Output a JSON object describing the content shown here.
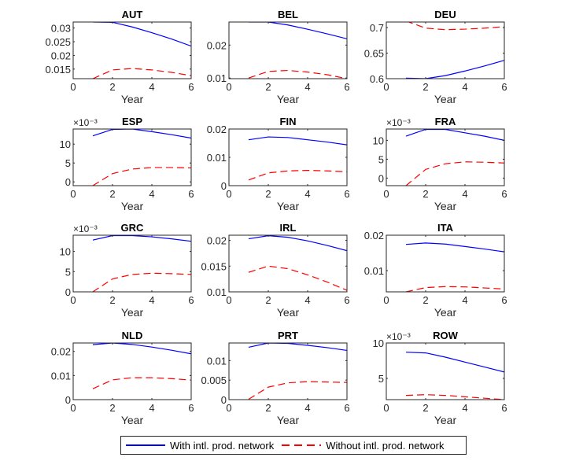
{
  "chart_data": {
    "type": "line",
    "layout": "4x3 small multiples",
    "x": [
      1,
      2,
      3,
      4,
      5,
      6
    ],
    "xlabel": "Year",
    "xlim": [
      0,
      6
    ],
    "xticks": [
      0,
      2,
      4,
      6
    ],
    "grid": false,
    "legend": {
      "placement": "bottom-center",
      "entries": [
        {
          "name": "With intl. prod. network",
          "color": "#0000ff",
          "style": "solid"
        },
        {
          "name": "Without intl. prod. network",
          "color": "#ff0000",
          "style": "dashed"
        }
      ]
    },
    "panels": [
      {
        "title": "AUT",
        "ylim": [
          0.0115,
          0.0322
        ],
        "yticks": [
          0.015,
          0.02,
          0.025,
          0.03
        ],
        "ytick_labels": [
          "0.015",
          "0.02",
          "0.025",
          "0.03"
        ],
        "exponent": "",
        "series": [
          {
            "name": "With intl. prod. network",
            "values": [
              0.0322,
              0.0321,
              0.0304,
              0.0283,
              0.026,
              0.0234
            ]
          },
          {
            "name": "Without intl. prod. network",
            "values": [
              0.0115,
              0.0147,
              0.0152,
              0.0147,
              0.0138,
              0.0126
            ]
          }
        ]
      },
      {
        "title": "BEL",
        "ylim": [
          0.0098,
          0.027
        ],
        "yticks": [
          0.01,
          0.02
        ],
        "ytick_labels": [
          "0.01",
          "0.02"
        ],
        "exponent": "",
        "series": [
          {
            "name": "With intl. prod. network",
            "values": [
              0.027,
              0.027,
              0.0261,
              0.0248,
              0.0234,
              0.0219
            ]
          },
          {
            "name": "Without intl. prod. network",
            "values": [
              0.01,
              0.012,
              0.0123,
              0.0118,
              0.011,
              0.0098
            ]
          }
        ]
      },
      {
        "title": "DEU",
        "ylim": [
          0.6,
          0.711
        ],
        "yticks": [
          0.6,
          0.65,
          0.7
        ],
        "ytick_labels": [
          "0.6",
          "0.65",
          "0.7"
        ],
        "exponent": "",
        "series": [
          {
            "name": "With intl. prod. network",
            "values": [
              0.601,
              0.6,
              0.606,
              0.615,
              0.625,
              0.636
            ]
          },
          {
            "name": "Without intl. prod. network",
            "values": [
              0.713,
              0.699,
              0.696,
              0.697,
              0.699,
              0.702
            ]
          }
        ]
      },
      {
        "title": "ESP",
        "ylim": [
          -1,
          14
        ],
        "yticks": [
          0,
          5,
          10
        ],
        "ytick_labels": [
          "0",
          "5",
          "10"
        ],
        "exponent": "×10⁻³",
        "series": [
          {
            "name": "With intl. prod. network",
            "values": [
              12.2,
              13.9,
              14.0,
              13.3,
              12.5,
              11.6
            ]
          },
          {
            "name": "Without intl. prod. network",
            "values": [
              -1.0,
              2.2,
              3.4,
              3.8,
              3.8,
              3.7
            ]
          }
        ]
      },
      {
        "title": "FIN",
        "ylim": [
          0,
          0.02
        ],
        "yticks": [
          0,
          0.01,
          0.02
        ],
        "ytick_labels": [
          "0",
          "0.01",
          "0.02"
        ],
        "exponent": "",
        "series": [
          {
            "name": "With intl. prod. network",
            "values": [
              0.0162,
              0.0172,
              0.017,
              0.0162,
              0.0154,
              0.0144
            ]
          },
          {
            "name": "Without intl. prod. network",
            "values": [
              0.002,
              0.0045,
              0.0052,
              0.0054,
              0.0052,
              0.0049
            ]
          }
        ]
      },
      {
        "title": "FRA",
        "ylim": [
          -2,
          13
        ],
        "yticks": [
          0,
          5,
          10
        ],
        "ytick_labels": [
          "0",
          "5",
          "10"
        ],
        "exponent": "×10⁻³",
        "series": [
          {
            "name": "With intl. prod. network",
            "values": [
              11.1,
              12.9,
              12.9,
              12.0,
              11.1,
              10.0
            ]
          },
          {
            "name": "Without intl. prod. network",
            "values": [
              -2.0,
              2.3,
              3.8,
              4.3,
              4.2,
              4.0
            ]
          }
        ]
      },
      {
        "title": "GRC",
        "ylim": [
          0,
          14
        ],
        "yticks": [
          0,
          5,
          10
        ],
        "ytick_labels": [
          "0",
          "5",
          "10"
        ],
        "exponent": "×10⁻³",
        "series": [
          {
            "name": "With intl. prod. network",
            "values": [
              12.8,
              13.9,
              13.9,
              13.6,
              13.1,
              12.5
            ]
          },
          {
            "name": "Without intl. prod. network",
            "values": [
              0.0,
              3.2,
              4.3,
              4.6,
              4.5,
              4.3
            ]
          }
        ]
      },
      {
        "title": "IRL",
        "ylim": [
          0.01,
          0.021
        ],
        "yticks": [
          0.01,
          0.015,
          0.02
        ],
        "ytick_labels": [
          "0.01",
          "0.015",
          "0.02"
        ],
        "exponent": "",
        "series": [
          {
            "name": "With intl. prod. network",
            "values": [
              0.0203,
              0.0209,
              0.0206,
              0.0199,
              0.019,
              0.018
            ]
          },
          {
            "name": "Without intl. prod. network",
            "values": [
              0.0138,
              0.015,
              0.0145,
              0.0133,
              0.0119,
              0.0103
            ]
          }
        ]
      },
      {
        "title": "ITA",
        "ylim": [
          0.004,
          0.02
        ],
        "yticks": [
          0.01,
          0.02
        ],
        "ytick_labels": [
          "0.01",
          "0.02"
        ],
        "exponent": "",
        "series": [
          {
            "name": "With intl. prod. network",
            "values": [
              0.0174,
              0.0178,
              0.0175,
              0.0168,
              0.0161,
              0.0153
            ]
          },
          {
            "name": "Without intl. prod. network",
            "values": [
              0.004,
              0.0052,
              0.0055,
              0.0054,
              0.0051,
              0.0048
            ]
          }
        ]
      },
      {
        "title": "NLD",
        "ylim": [
          0,
          0.0235
        ],
        "yticks": [
          0,
          0.01,
          0.02
        ],
        "ytick_labels": [
          "0",
          "0.01",
          "0.02"
        ],
        "exponent": "",
        "series": [
          {
            "name": "With intl. prod. network",
            "values": [
              0.0228,
              0.0235,
              0.0229,
              0.0218,
              0.0205,
              0.019
            ]
          },
          {
            "name": "Without intl. prod. network",
            "values": [
              0.0045,
              0.0082,
              0.0091,
              0.0091,
              0.0087,
              0.0081
            ]
          }
        ]
      },
      {
        "title": "PRT",
        "ylim": [
          0,
          0.0145
        ],
        "yticks": [
          0,
          0.005,
          0.01
        ],
        "ytick_labels": [
          "0",
          "0.005",
          "0.01"
        ],
        "exponent": "",
        "series": [
          {
            "name": "With intl. prod. network",
            "values": [
              0.0134,
              0.0145,
              0.0144,
              0.0139,
              0.0133,
              0.0126
            ]
          },
          {
            "name": "Without intl. prod. network",
            "values": [
              0.0001,
              0.0032,
              0.0043,
              0.0046,
              0.0045,
              0.0044
            ]
          }
        ]
      },
      {
        "title": "ROW",
        "ylim": [
          2,
          10
        ],
        "yticks": [
          5,
          10
        ],
        "ytick_labels": [
          "5",
          "10"
        ],
        "exponent": "×10⁻³",
        "series": [
          {
            "name": "With intl. prod. network",
            "values": [
              8.7,
              8.6,
              8.0,
              7.3,
              6.6,
              5.9
            ]
          },
          {
            "name": "Without intl. prod. network",
            "values": [
              2.6,
              2.7,
              2.6,
              2.4,
              2.2,
              2.0
            ]
          }
        ]
      }
    ]
  }
}
